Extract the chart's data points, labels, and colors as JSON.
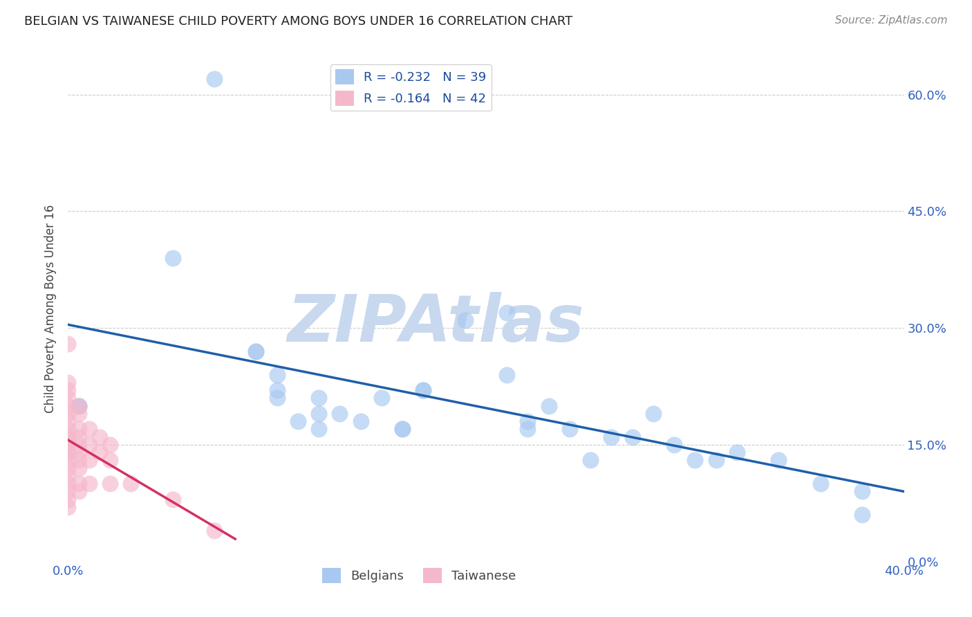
{
  "title": "BELGIAN VS TAIWANESE CHILD POVERTY AMONG BOYS UNDER 16 CORRELATION CHART",
  "source": "Source: ZipAtlas.com",
  "ylabel": "Child Poverty Among Boys Under 16",
  "xlim": [
    0.0,
    0.4
  ],
  "ylim": [
    0.0,
    0.65
  ],
  "belgian_R": -0.232,
  "belgian_N": 39,
  "taiwanese_R": -0.164,
  "taiwanese_N": 42,
  "belgian_color": "#A8C8F0",
  "taiwanese_color": "#F5B8CB",
  "belgian_line_color": "#1E5FA8",
  "taiwanese_line_color": "#D43060",
  "watermark": "ZIPAtlas",
  "watermark_color": "#C8D8EE",
  "background_color": "#FFFFFF",
  "belgian_x": [
    0.005,
    0.005,
    0.05,
    0.07,
    0.09,
    0.09,
    0.1,
    0.1,
    0.1,
    0.11,
    0.12,
    0.12,
    0.12,
    0.13,
    0.14,
    0.15,
    0.16,
    0.16,
    0.17,
    0.17,
    0.19,
    0.21,
    0.21,
    0.22,
    0.22,
    0.23,
    0.24,
    0.25,
    0.26,
    0.27,
    0.28,
    0.29,
    0.3,
    0.31,
    0.32,
    0.34,
    0.36,
    0.38,
    0.38
  ],
  "belgian_y": [
    0.2,
    0.2,
    0.39,
    0.62,
    0.27,
    0.27,
    0.24,
    0.22,
    0.21,
    0.18,
    0.19,
    0.21,
    0.17,
    0.19,
    0.18,
    0.21,
    0.17,
    0.17,
    0.22,
    0.22,
    0.31,
    0.24,
    0.32,
    0.18,
    0.17,
    0.2,
    0.17,
    0.13,
    0.16,
    0.16,
    0.19,
    0.15,
    0.13,
    0.13,
    0.14,
    0.13,
    0.1,
    0.09,
    0.06
  ],
  "taiwanese_x": [
    0.0,
    0.0,
    0.0,
    0.0,
    0.0,
    0.0,
    0.0,
    0.0,
    0.0,
    0.0,
    0.0,
    0.0,
    0.0,
    0.0,
    0.0,
    0.0,
    0.0,
    0.0,
    0.0,
    0.0,
    0.005,
    0.005,
    0.005,
    0.005,
    0.005,
    0.005,
    0.005,
    0.005,
    0.005,
    0.005,
    0.01,
    0.01,
    0.01,
    0.01,
    0.015,
    0.015,
    0.02,
    0.02,
    0.02,
    0.03,
    0.05,
    0.07
  ],
  "taiwanese_y": [
    0.28,
    0.23,
    0.22,
    0.21,
    0.2,
    0.19,
    0.18,
    0.17,
    0.16,
    0.16,
    0.15,
    0.14,
    0.14,
    0.13,
    0.12,
    0.11,
    0.1,
    0.09,
    0.08,
    0.07,
    0.2,
    0.19,
    0.17,
    0.16,
    0.15,
    0.14,
    0.13,
    0.12,
    0.1,
    0.09,
    0.17,
    0.15,
    0.13,
    0.1,
    0.16,
    0.14,
    0.15,
    0.13,
    0.1,
    0.1,
    0.08,
    0.04
  ]
}
